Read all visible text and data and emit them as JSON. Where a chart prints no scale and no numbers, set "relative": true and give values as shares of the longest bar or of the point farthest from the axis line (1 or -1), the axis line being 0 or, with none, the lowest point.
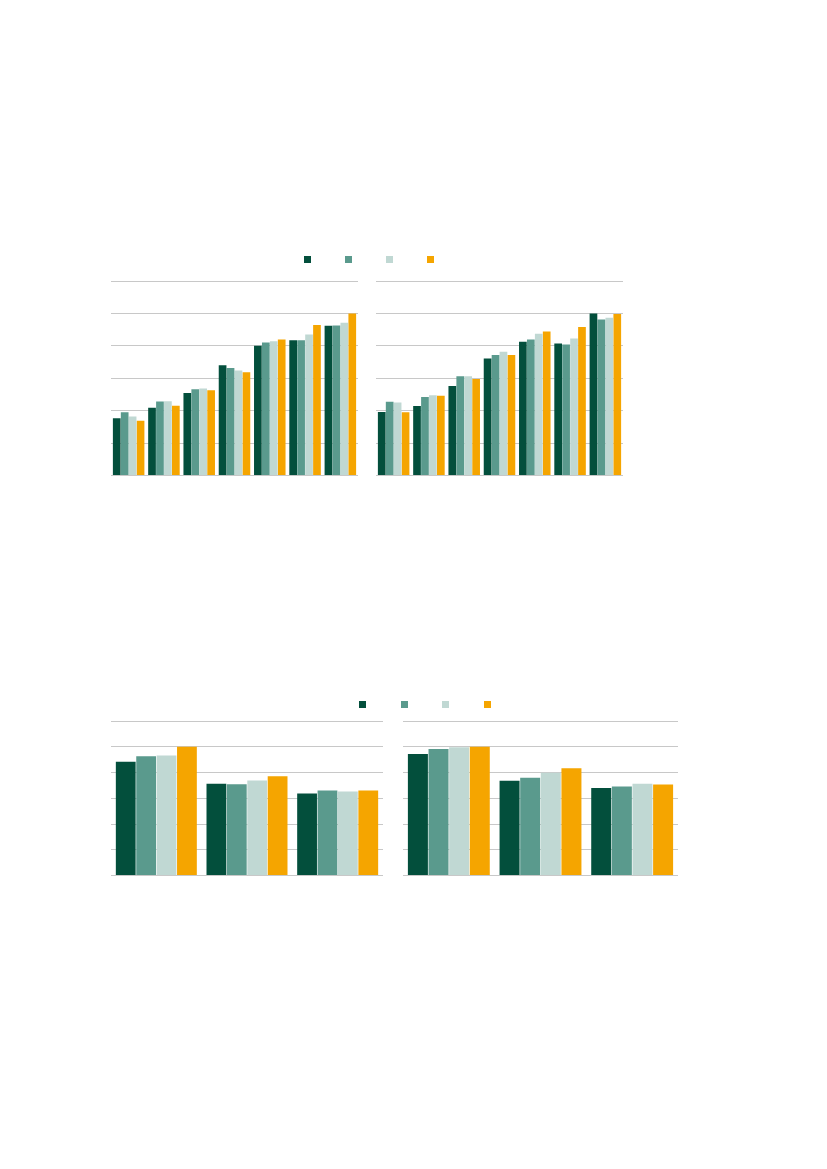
{
  "chart_data": [
    {
      "type": "bar",
      "relative": true,
      "grid": "y",
      "categories": [
        null,
        null,
        null,
        null,
        null,
        null,
        null
      ],
      "series": [
        {
          "color": "#034f3c",
          "values": [
            0.354,
            0.419,
            0.509,
            0.681,
            0.801,
            0.834,
            0.924
          ]
        },
        {
          "color": "#5a9a8d",
          "values": [
            0.391,
            0.457,
            0.533,
            0.664,
            0.821,
            0.834,
            0.925
          ]
        },
        {
          "color": "#c0d8d3",
          "values": [
            0.364,
            0.459,
            0.537,
            0.648,
            0.828,
            0.87,
            0.943
          ]
        },
        {
          "color": "#f5a500",
          "values": [
            0.339,
            0.43,
            0.526,
            0.638,
            0.839,
            0.928,
            1
          ]
        }
      ]
    },
    {
      "type": "bar",
      "relative": true,
      "grid": "y",
      "categories": [
        null,
        null,
        null,
        null,
        null,
        null,
        null
      ],
      "series": [
        {
          "color": "#034f3c",
          "values": [
            0.392,
            0.429,
            0.553,
            0.722,
            0.826,
            0.815,
            1
          ]
        },
        {
          "color": "#5a9a8d",
          "values": [
            0.456,
            0.485,
            0.612,
            0.744,
            0.839,
            0.808,
            0.963
          ]
        },
        {
          "color": "#c0d8d3",
          "values": [
            0.451,
            0.495,
            0.612,
            0.764,
            0.874,
            0.846,
            0.973
          ]
        },
        {
          "color": "#f5a500",
          "values": [
            0.39,
            0.493,
            0.595,
            0.744,
            0.888,
            0.916,
            0.996
          ]
        }
      ]
    },
    {
      "type": "bar",
      "relative": true,
      "grid": "y",
      "categories": [
        null,
        null,
        null
      ],
      "series": [
        {
          "color": "#034f3c",
          "values": [
            0.883,
            0.712,
            0.637
          ]
        },
        {
          "color": "#5a9a8d",
          "values": [
            0.927,
            0.71,
            0.661
          ]
        },
        {
          "color": "#c0d8d3",
          "values": [
            0.932,
            0.738,
            0.652
          ]
        },
        {
          "color": "#f5a500",
          "values": [
            1,
            0.772,
            0.661
          ]
        }
      ]
    },
    {
      "type": "bar",
      "relative": true,
      "grid": "y",
      "categories": [
        null,
        null,
        null
      ],
      "series": [
        {
          "color": "#034f3c",
          "values": [
            0.944,
            0.737,
            0.679
          ]
        },
        {
          "color": "#5a9a8d",
          "values": [
            0.982,
            0.76,
            0.692
          ]
        },
        {
          "color": "#c0d8d3",
          "values": [
            0.997,
            0.798,
            0.712
          ]
        },
        {
          "color": "#f5a500",
          "values": [
            1,
            0.833,
            0.707
          ]
        }
      ]
    }
  ]
}
